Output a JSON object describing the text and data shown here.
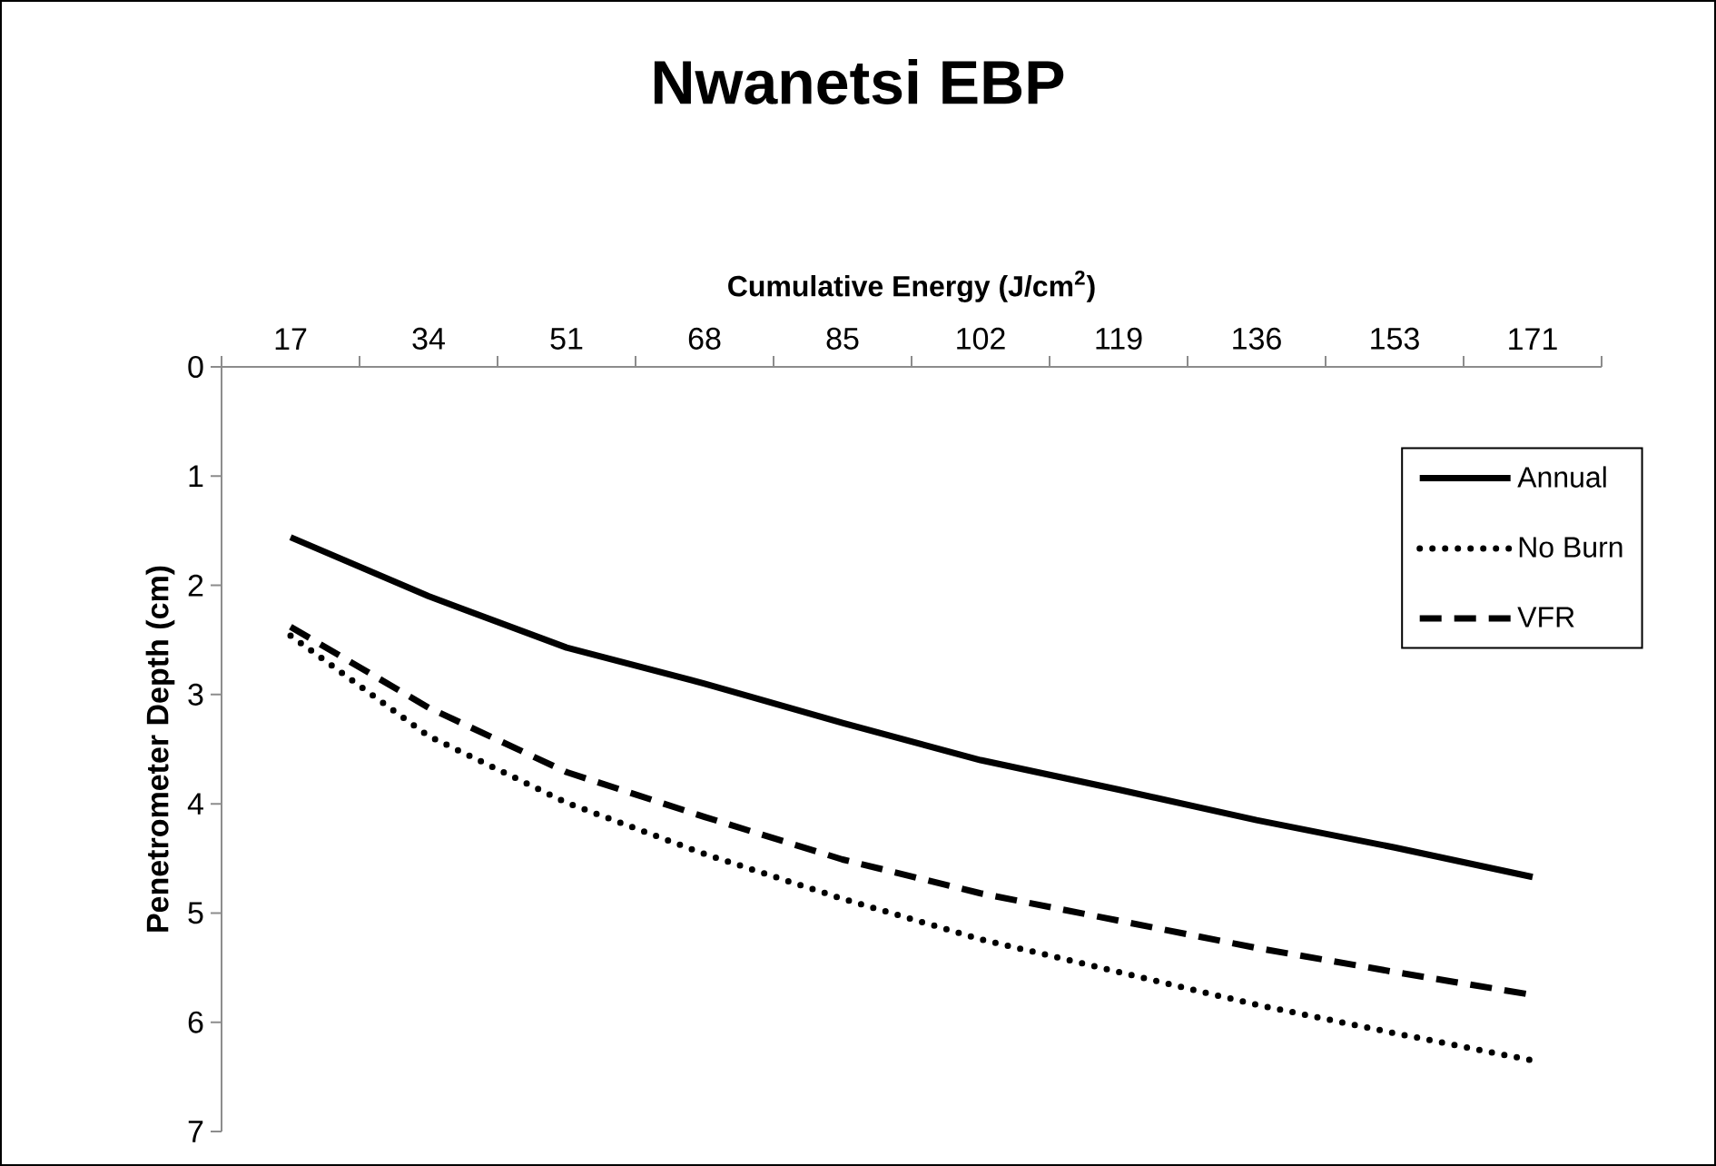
{
  "chart_data": {
    "type": "line",
    "title": "Nwanetsi EBP",
    "xlabel": "Cumulative Energy (J/cm$^{2}$)",
    "ylabel": "Penetrometer Depth (cm)",
    "categories": [
      "17",
      "34",
      "51",
      "68",
      "85",
      "102",
      "119",
      "136",
      "153",
      "171"
    ],
    "series": [
      {
        "name": "Annual",
        "color": "#000000",
        "line_style": "solid",
        "values": [
          1.56,
          2.1,
          2.57,
          2.9,
          3.26,
          3.6,
          3.87,
          4.15,
          4.4,
          4.67
        ]
      },
      {
        "name": "No Burn",
        "color": "#000000",
        "line_style": "dotted",
        "values": [
          2.46,
          3.38,
          3.99,
          4.46,
          4.87,
          5.24,
          5.54,
          5.84,
          6.1,
          6.35
        ]
      },
      {
        "name": "VFR",
        "color": "#000000",
        "line_style": "dashed",
        "values": [
          2.38,
          3.12,
          3.71,
          4.12,
          4.51,
          4.82,
          5.07,
          5.32,
          5.54,
          5.75
        ]
      }
    ],
    "ylim": [
      7,
      0
    ],
    "yticks": [
      0,
      1,
      2,
      3,
      4,
      5,
      6,
      7
    ],
    "legend": "top right"
  }
}
